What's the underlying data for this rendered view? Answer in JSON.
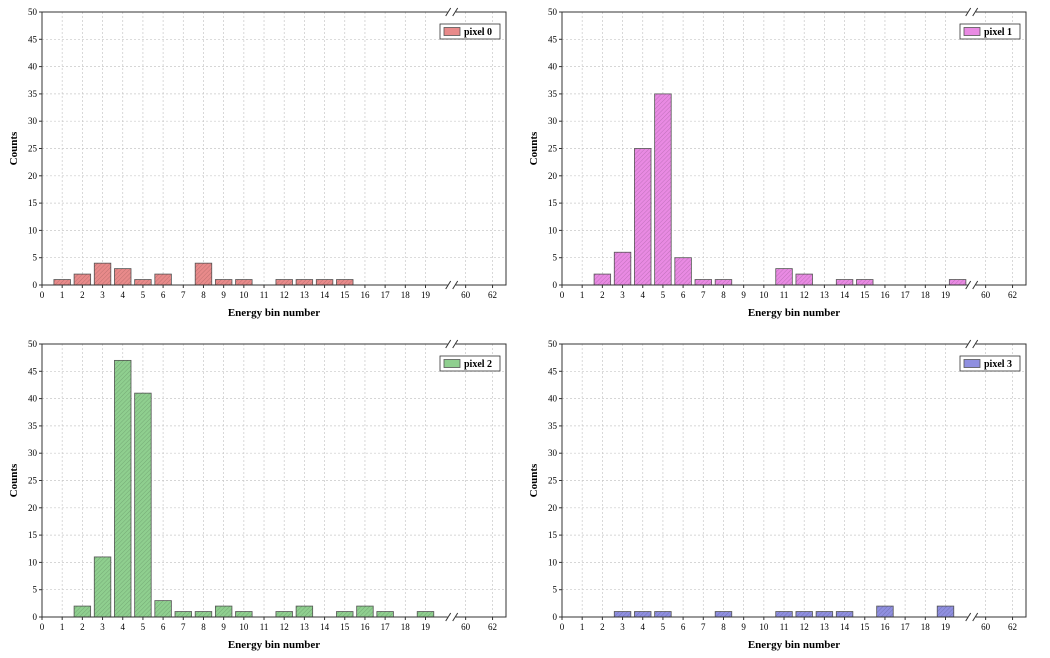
{
  "chart_data": [
    {
      "type": "bar",
      "legend": "pixel 0",
      "color": "#e88a8a",
      "xlabel": "Energy bin number",
      "ylabel": "Counts",
      "ylim": [
        0,
        50
      ],
      "yticks": [
        0,
        5,
        10,
        15,
        20,
        25,
        30,
        35,
        40,
        45,
        50
      ],
      "xticks": [
        "0",
        "1",
        "2",
        "3",
        "4",
        "5",
        "6",
        "7",
        "8",
        "9",
        "10",
        "11",
        "12",
        "13",
        "14",
        "15",
        "16",
        "17",
        "18",
        "19",
        "60",
        "62"
      ],
      "axis_break": true,
      "grid": true,
      "legend_position": "top-right",
      "bars": [
        {
          "x": 1,
          "value": 1
        },
        {
          "x": 2,
          "value": 2
        },
        {
          "x": 3,
          "value": 4
        },
        {
          "x": 4,
          "value": 3
        },
        {
          "x": 5,
          "value": 1
        },
        {
          "x": 6,
          "value": 2
        },
        {
          "x": 8,
          "value": 4
        },
        {
          "x": 9,
          "value": 1
        },
        {
          "x": 10,
          "value": 1
        },
        {
          "x": 12,
          "value": 1
        },
        {
          "x": 13,
          "value": 1
        },
        {
          "x": 14,
          "value": 1
        },
        {
          "x": 15,
          "value": 1
        }
      ]
    },
    {
      "type": "bar",
      "legend": "pixel 1",
      "color": "#e98ae3",
      "xlabel": "Energy bin number",
      "ylabel": "Counts",
      "ylim": [
        0,
        50
      ],
      "yticks": [
        0,
        5,
        10,
        15,
        20,
        25,
        30,
        35,
        40,
        45,
        50
      ],
      "xticks": [
        "0",
        "1",
        "2",
        "3",
        "4",
        "5",
        "6",
        "7",
        "8",
        "9",
        "10",
        "11",
        "12",
        "13",
        "14",
        "15",
        "16",
        "17",
        "18",
        "19",
        "60",
        "62"
      ],
      "axis_break": true,
      "grid": true,
      "legend_position": "top-right",
      "bars": [
        {
          "x": 2,
          "value": 2
        },
        {
          "x": 3,
          "value": 6
        },
        {
          "x": 4,
          "value": 25
        },
        {
          "x": 5,
          "value": 35
        },
        {
          "x": 6,
          "value": 5
        },
        {
          "x": 7,
          "value": 1
        },
        {
          "x": 8,
          "value": 1
        },
        {
          "x": 11,
          "value": 3
        },
        {
          "x": 12,
          "value": 2
        },
        {
          "x": 14,
          "value": 1
        },
        {
          "x": 15,
          "value": 1
        },
        {
          "x": 19.6,
          "value": 1
        }
      ]
    },
    {
      "type": "bar",
      "legend": "pixel 2",
      "color": "#8fcf8f",
      "xlabel": "Energy bin number",
      "ylabel": "Counts",
      "ylim": [
        0,
        50
      ],
      "yticks": [
        0,
        5,
        10,
        15,
        20,
        25,
        30,
        35,
        40,
        45,
        50
      ],
      "xticks": [
        "0",
        "1",
        "2",
        "3",
        "4",
        "5",
        "6",
        "7",
        "8",
        "9",
        "10",
        "11",
        "12",
        "13",
        "14",
        "15",
        "16",
        "17",
        "18",
        "19",
        "60",
        "62"
      ],
      "axis_break": true,
      "grid": true,
      "legend_position": "top-right",
      "bars": [
        {
          "x": 2,
          "value": 2
        },
        {
          "x": 3,
          "value": 11
        },
        {
          "x": 4,
          "value": 47
        },
        {
          "x": 5,
          "value": 41
        },
        {
          "x": 6,
          "value": 3
        },
        {
          "x": 7,
          "value": 1
        },
        {
          "x": 8,
          "value": 1
        },
        {
          "x": 9,
          "value": 2
        },
        {
          "x": 10,
          "value": 1
        },
        {
          "x": 12,
          "value": 1
        },
        {
          "x": 13,
          "value": 2
        },
        {
          "x": 15,
          "value": 1
        },
        {
          "x": 16,
          "value": 2
        },
        {
          "x": 17,
          "value": 1
        },
        {
          "x": 19,
          "value": 1
        }
      ]
    },
    {
      "type": "bar",
      "legend": "pixel 3",
      "color": "#8f8fe0",
      "xlabel": "Energy bin number",
      "ylabel": "Counts",
      "ylim": [
        0,
        50
      ],
      "yticks": [
        0,
        5,
        10,
        15,
        20,
        25,
        30,
        35,
        40,
        45,
        50
      ],
      "xticks": [
        "0",
        "1",
        "2",
        "3",
        "4",
        "5",
        "6",
        "7",
        "8",
        "9",
        "10",
        "11",
        "12",
        "13",
        "14",
        "15",
        "16",
        "17",
        "18",
        "19",
        "60",
        "62"
      ],
      "axis_break": true,
      "grid": true,
      "legend_position": "top-right",
      "bars": [
        {
          "x": 3,
          "value": 1
        },
        {
          "x": 4,
          "value": 1
        },
        {
          "x": 5,
          "value": 1
        },
        {
          "x": 8,
          "value": 1
        },
        {
          "x": 11,
          "value": 1
        },
        {
          "x": 12,
          "value": 1
        },
        {
          "x": 13,
          "value": 1
        },
        {
          "x": 14,
          "value": 1
        },
        {
          "x": 16,
          "value": 2
        },
        {
          "x": 19,
          "value": 2
        }
      ]
    }
  ]
}
